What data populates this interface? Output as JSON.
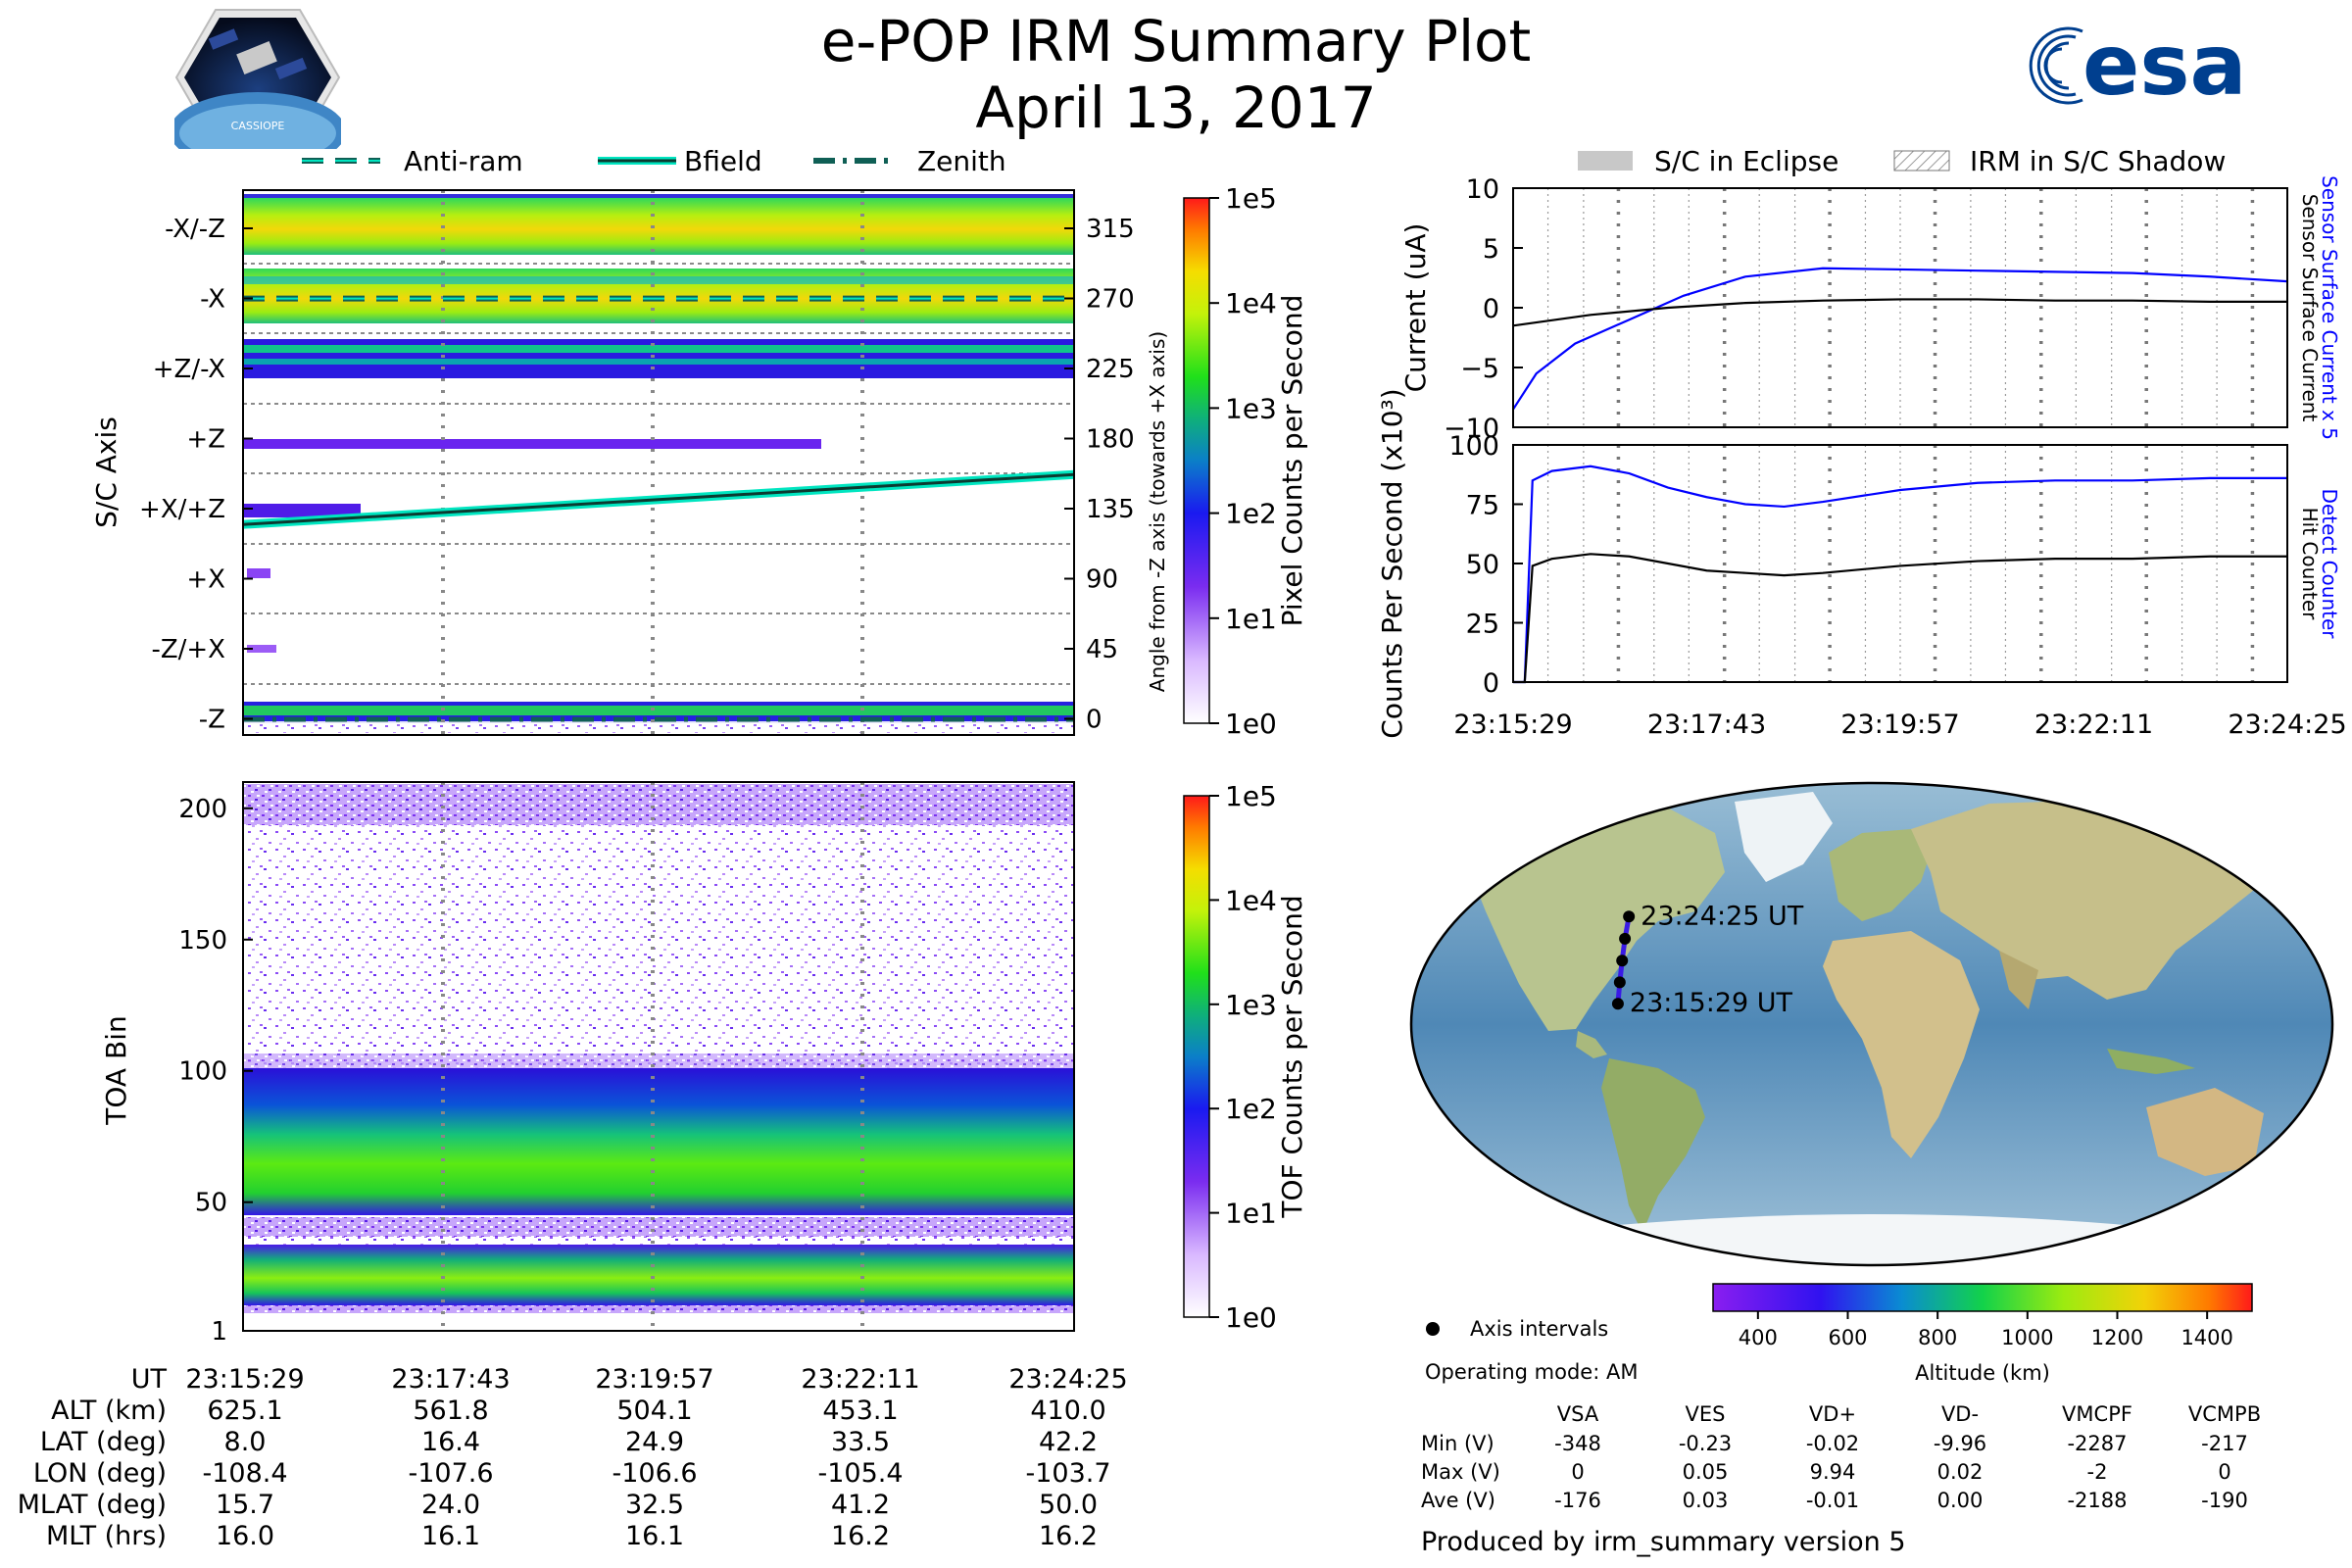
{
  "header": {
    "title": "e-POP IRM Summary Plot",
    "date": "April 13, 2017",
    "mission_logo_text": "CASSIOPE",
    "agency_logo_text": "esa"
  },
  "legend_top_left": [
    "Anti-ram",
    "Bfield",
    "Zenith"
  ],
  "legend_top_right": [
    "S/C in Eclipse",
    "IRM in S/C Shadow"
  ],
  "time_ticks": [
    "23:15:29",
    "23:17:43",
    "23:19:57",
    "23:22:11",
    "23:24:25"
  ],
  "chart_data": [
    {
      "type": "heatmap",
      "name": "sc-axis-panel",
      "ylabel": "S/C Axis",
      "ylabel_right": "Angle from -Z axis (towards +X axis)",
      "categories": [
        "-X/-Z",
        "-X",
        "+Z/-X",
        "+Z",
        "+X/+Z",
        "+X",
        "-Z/+X",
        "-Z"
      ],
      "angle_ticks": [
        "315",
        "270",
        "225",
        "180",
        "135",
        "90",
        "45",
        "0"
      ],
      "colorbar": {
        "label": "Pixel Counts per Second",
        "ticks": [
          "1e5",
          "1e4",
          "1e3",
          "1e2",
          "1e1",
          "1e0"
        ]
      },
      "series": [
        {
          "name": "Anti-ram",
          "x": [
            0,
            1
          ],
          "y": [
            270,
            270
          ]
        },
        {
          "name": "Bfield",
          "x": [
            0,
            1
          ],
          "y": [
            125,
            157
          ]
        },
        {
          "name": "Zenith",
          "x": [
            0,
            1
          ],
          "y": [
            0,
            0
          ]
        }
      ]
    },
    {
      "type": "heatmap",
      "name": "toa-panel",
      "ylabel": "TOA Bin",
      "y_ticks": [
        "1",
        "50",
        "100",
        "150",
        "200"
      ],
      "ylim": [
        1,
        210
      ],
      "colorbar": {
        "label": "TOF Counts per Second",
        "ticks": [
          "1e5",
          "1e4",
          "1e3",
          "1e2",
          "1e1",
          "1e0"
        ]
      }
    },
    {
      "type": "line",
      "name": "current-panel",
      "ylabel": "Current (uA)",
      "ylim": [
        -10,
        10
      ],
      "y_ticks": [
        "10",
        "5",
        "0",
        "−5",
        "−10"
      ],
      "right_labels": [
        "Sensor Surface Current x 5",
        "Sensor Surface Current"
      ],
      "series": [
        {
          "name": "Sensor Surface Current x 5",
          "color": "#0000ff",
          "x": [
            0,
            0.03,
            0.08,
            0.15,
            0.22,
            0.3,
            0.4,
            0.5,
            0.6,
            0.7,
            0.8,
            0.9,
            1.0
          ],
          "y": [
            -8.5,
            -5.5,
            -3,
            -1,
            1,
            2.6,
            3.3,
            3.2,
            3.1,
            3.0,
            2.9,
            2.6,
            2.2
          ]
        },
        {
          "name": "Sensor Surface Current",
          "color": "#000000",
          "x": [
            0,
            0.1,
            0.2,
            0.3,
            0.4,
            0.5,
            0.6,
            0.7,
            0.8,
            0.9,
            1.0
          ],
          "y": [
            -1.5,
            -0.6,
            0,
            0.4,
            0.6,
            0.7,
            0.7,
            0.6,
            0.6,
            0.5,
            0.5
          ]
        }
      ]
    },
    {
      "type": "line",
      "name": "counts-panel",
      "ylabel": "Counts Per Second (x10³)",
      "ylim": [
        0,
        100
      ],
      "y_ticks": [
        "100",
        "75",
        "50",
        "25",
        "0"
      ],
      "right_labels": [
        "Detect Counter",
        "Hit Counter"
      ],
      "series": [
        {
          "name": "Detect Counter",
          "color": "#0000ff",
          "x": [
            0,
            0.015,
            0.025,
            0.05,
            0.1,
            0.15,
            0.2,
            0.25,
            0.3,
            0.35,
            0.4,
            0.5,
            0.6,
            0.7,
            0.8,
            0.9,
            1.0
          ],
          "y": [
            0,
            0,
            85,
            89,
            91,
            88,
            82,
            78,
            75,
            74,
            76,
            81,
            84,
            85,
            85,
            86,
            86
          ]
        },
        {
          "name": "Hit Counter",
          "color": "#000000",
          "x": [
            0,
            0.015,
            0.025,
            0.05,
            0.1,
            0.15,
            0.2,
            0.25,
            0.3,
            0.35,
            0.4,
            0.5,
            0.6,
            0.7,
            0.8,
            0.9,
            1.0
          ],
          "y": [
            0,
            0,
            49,
            52,
            54,
            53,
            50,
            47,
            46,
            45,
            46,
            49,
            51,
            52,
            52,
            53,
            53
          ]
        }
      ]
    }
  ],
  "xgrid": [
    0.045,
    0.091,
    0.136,
    0.182,
    0.227,
    0.273,
    0.318,
    0.364,
    0.409,
    0.455,
    0.5,
    0.545,
    0.591,
    0.636,
    0.682,
    0.727,
    0.773,
    0.818,
    0.864,
    0.909,
    0.955
  ],
  "map": {
    "labels": [
      "23:24:25 UT",
      "23:15:29 UT"
    ],
    "track": [
      {
        "lon": -103.7,
        "lat": 42.2
      },
      {
        "lon": -105.4,
        "lat": 33.5
      },
      {
        "lon": -106.6,
        "lat": 24.9
      },
      {
        "lon": -107.6,
        "lat": 16.4
      },
      {
        "lon": -108.4,
        "lat": 8.0
      }
    ],
    "axis_intervals_label": "Axis intervals",
    "operating_mode": "Operating mode: AM",
    "altitude_colorbar": {
      "label": "Altitude (km)",
      "ticks": [
        "400",
        "600",
        "800",
        "1000",
        "1200",
        "1400"
      ],
      "range": [
        300,
        1500
      ]
    }
  },
  "info_table": {
    "headers": [
      "",
      "VSA",
      "VES",
      "VD+",
      "VD-",
      "VMCPF",
      "VCMPB"
    ],
    "rows": [
      [
        "Min (V)",
        "-348",
        "-0.23",
        "-0.02",
        "-9.96",
        "-2287",
        "-217"
      ],
      [
        "Max (V)",
        "0",
        "0.05",
        "9.94",
        "0.02",
        "-2",
        "0"
      ],
      [
        "Ave (V)",
        "-176",
        "0.03",
        "-0.01",
        "0.00",
        "-2188",
        "-190"
      ]
    ]
  },
  "bottom_table": {
    "labels": [
      "UT",
      "ALT (km)",
      "LAT (deg)",
      "LON (deg)",
      "MLAT (deg)",
      "MLT (hrs)"
    ],
    "columns": [
      [
        "23:15:29",
        "625.1",
        "8.0",
        "-108.4",
        "15.7",
        "16.0"
      ],
      [
        "23:17:43",
        "561.8",
        "16.4",
        "-107.6",
        "24.0",
        "16.1"
      ],
      [
        "23:19:57",
        "504.1",
        "24.9",
        "-106.6",
        "32.5",
        "16.1"
      ],
      [
        "23:22:11",
        "453.1",
        "33.5",
        "-105.4",
        "41.2",
        "16.2"
      ],
      [
        "23:24:25",
        "410.0",
        "42.2",
        "-103.7",
        "50.0",
        "16.2"
      ]
    ]
  },
  "footer": "Produced by irm_summary version 5",
  "colors": {
    "accent_blue": "#0000ff",
    "cyan": "#00e5c0",
    "esa_blue": "#003f8f"
  }
}
